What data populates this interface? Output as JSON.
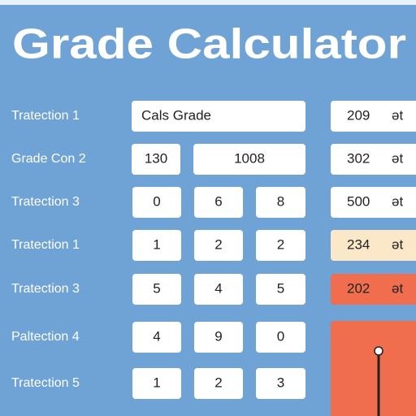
{
  "title": "Grade Calculator",
  "rows": [
    {
      "label": "Tratection 1",
      "inputs": [
        "Cals Grade"
      ],
      "result": {
        "value": "209",
        "unit": "ət",
        "color": "#ffffff"
      }
    },
    {
      "label": "Grade Con 2",
      "inputs": [
        "130",
        "1008"
      ],
      "result": {
        "value": "302",
        "unit": "ət",
        "color": "#ffffff"
      }
    },
    {
      "label": "Tratection 3",
      "inputs": [
        "0",
        "6",
        "8"
      ],
      "result": {
        "value": "500",
        "unit": "ət",
        "color": "#ffffff"
      }
    },
    {
      "label": "Tratection 1",
      "inputs": [
        "1",
        "2",
        "2"
      ],
      "result": {
        "value": "234",
        "unit": "ət",
        "color": "#fbe8c8"
      }
    },
    {
      "label": "Tratection 3",
      "inputs": [
        "5",
        "4",
        "5"
      ],
      "result": {
        "value": "202",
        "unit": "ət",
        "color": "#f06e4e"
      }
    },
    {
      "label": "Paltection 4",
      "inputs": [
        "4",
        "9",
        "0"
      ]
    },
    {
      "label": "Tratection 5",
      "inputs": [
        "1",
        "2",
        "3"
      ]
    }
  ]
}
